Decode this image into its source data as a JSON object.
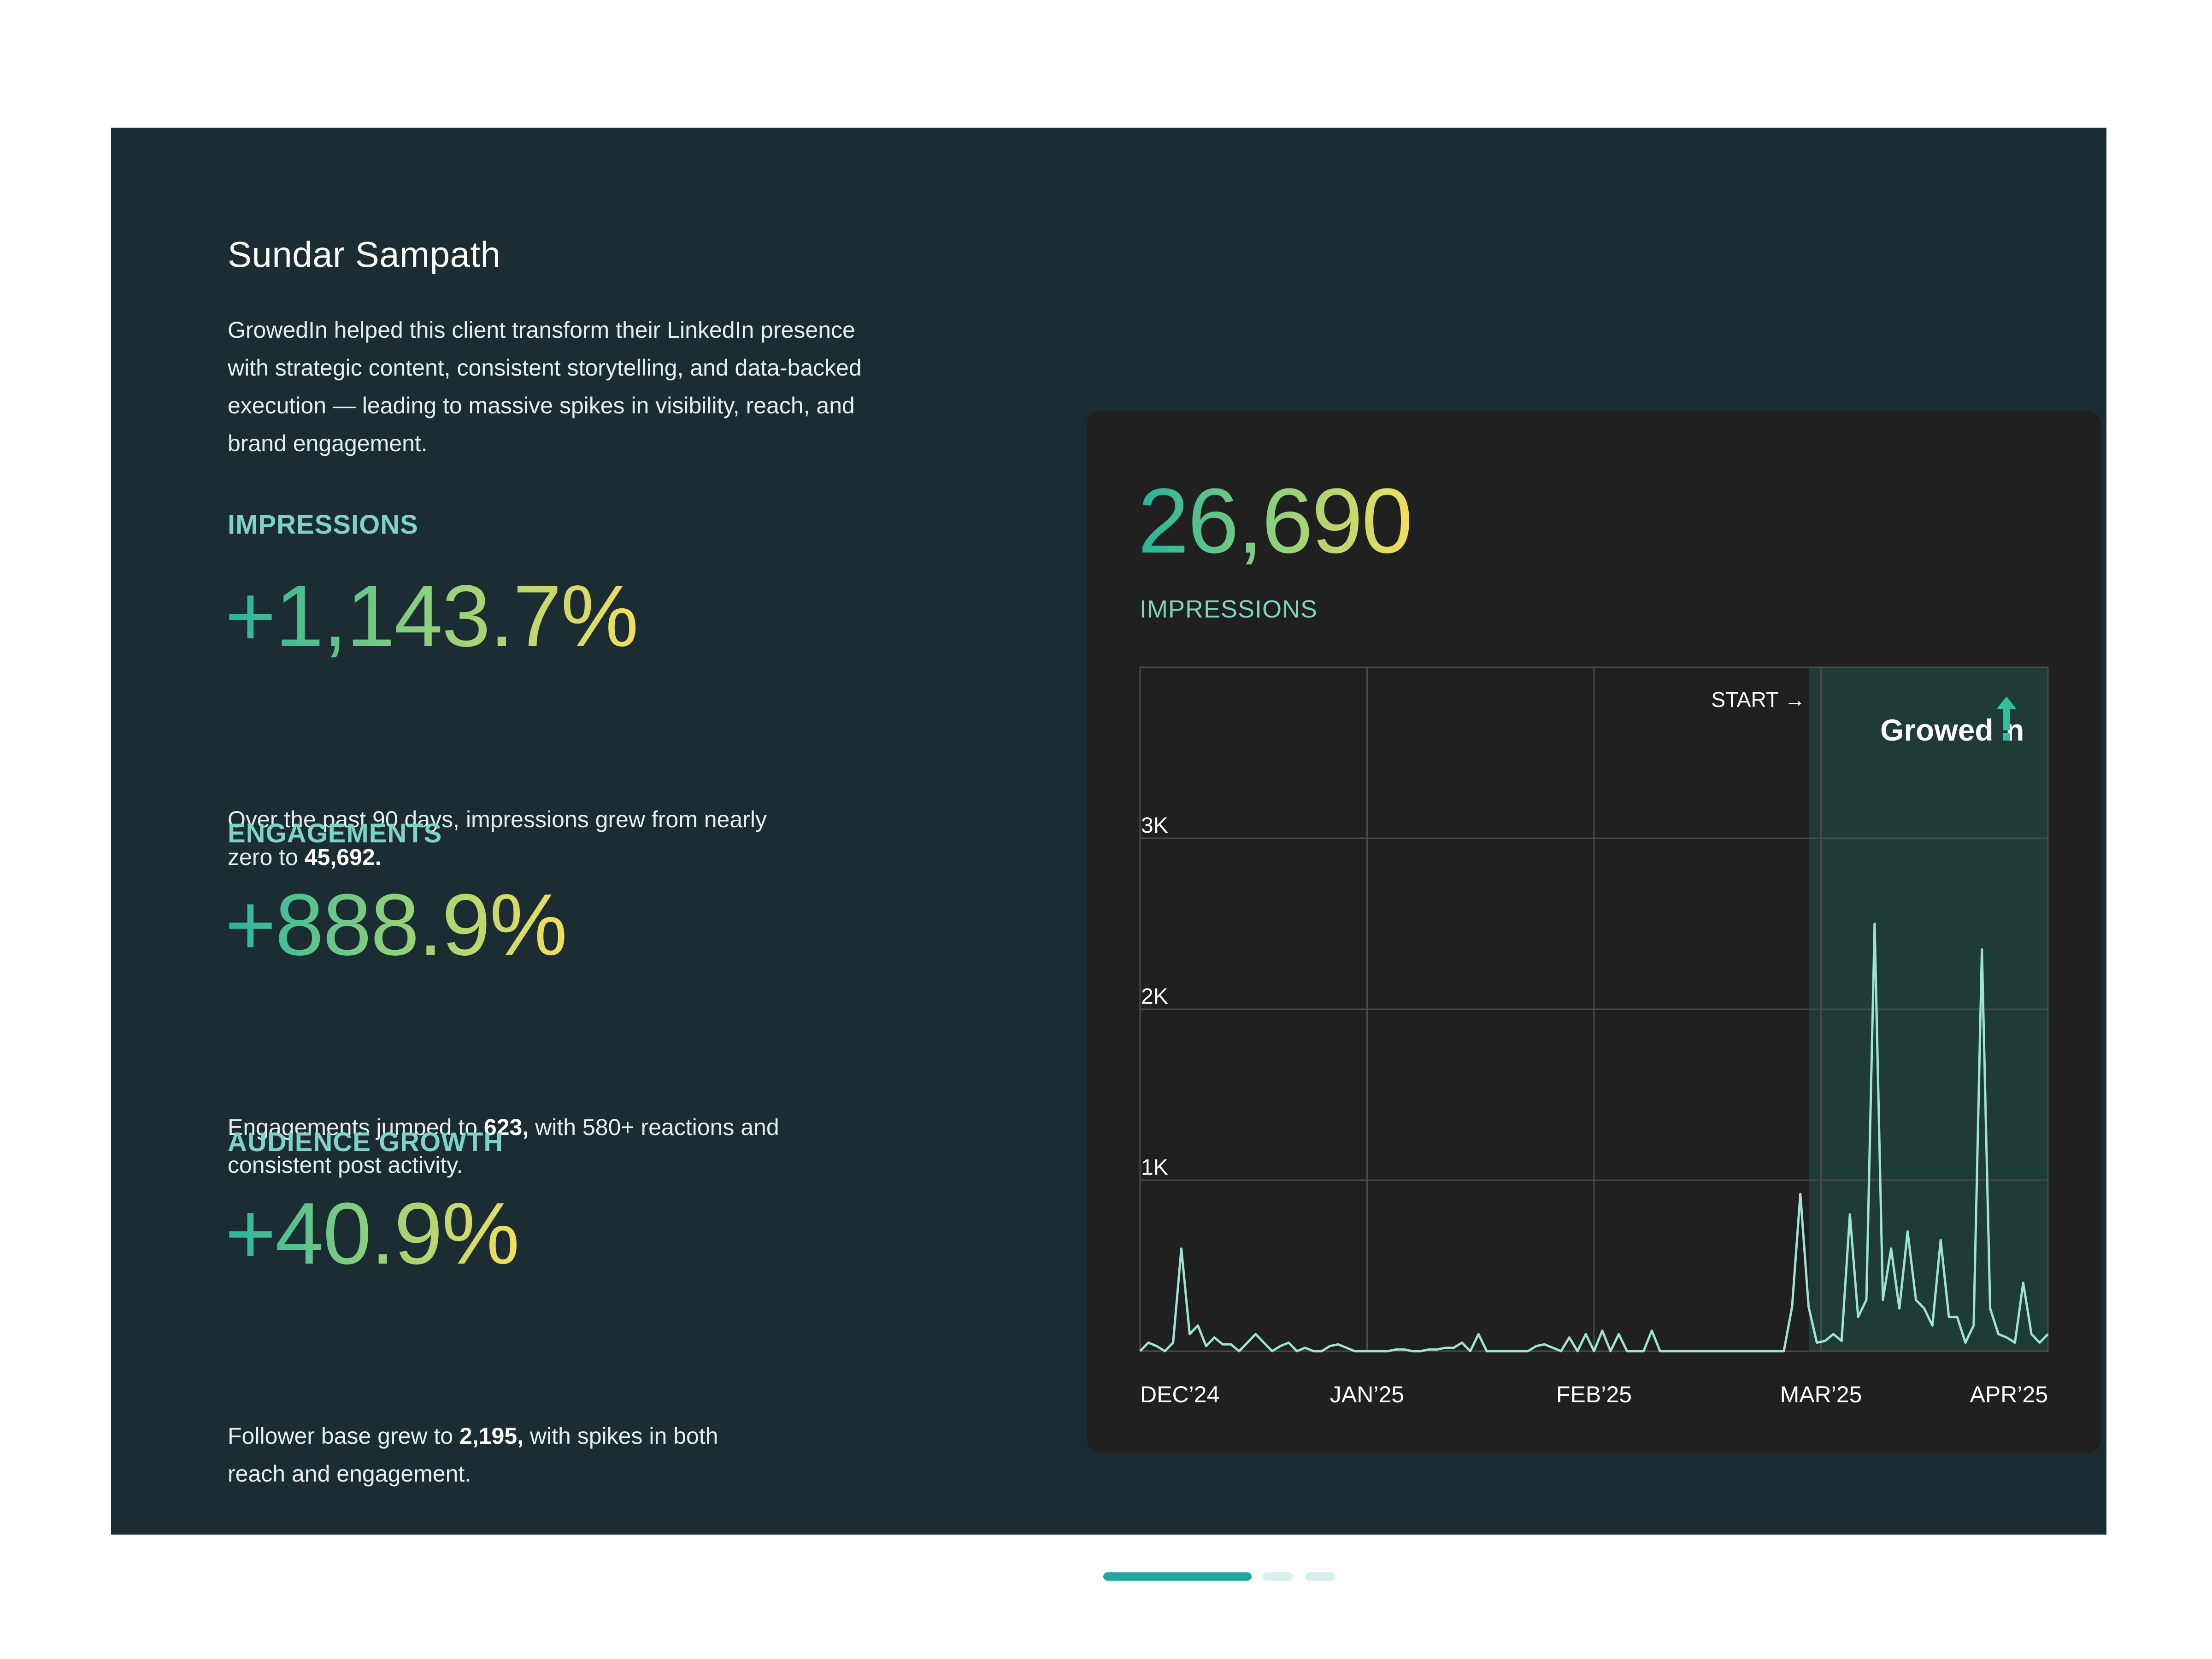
{
  "client": {
    "name": "Sundar Sampath",
    "intro": "GrowedIn helped this client transform their LinkedIn presence with strategic content, consistent storytelling, and data-backed execution — leading to massive spikes in visibility, reach, and brand engagement."
  },
  "metrics": [
    {
      "label": "IMPRESSIONS",
      "value": "+1,143.7%",
      "desc_pre": "Over the past 90 days, impressions grew from nearly zero to ",
      "desc_bold": "45,692.",
      "desc_post": ""
    },
    {
      "label": "ENGAGEMENTS",
      "value": "+888.9%",
      "desc_pre": "Engagements jumped to ",
      "desc_bold": "623,",
      "desc_post": " with 580+ reactions and consistent post activity."
    },
    {
      "label": "AUDIENCE GROWTH",
      "value": "+40.9%",
      "desc_pre": "Follower base grew to ",
      "desc_bold": "2,195,",
      "desc_post": " with spikes in both reach and engagement."
    }
  ],
  "card": {
    "total": "26,690",
    "label": "IMPRESSIONS",
    "start_marker": "START →",
    "brand_pre": "Growed",
    "brand_post": "n"
  },
  "colors": {
    "panel": "#1b2d33",
    "card": "#202020",
    "accent": "#7fd3c4",
    "line": "#9ee3d3",
    "highlight": "#1e3b36"
  },
  "carousel": {
    "total": 3,
    "active": 0
  },
  "chart_data": {
    "type": "line",
    "x_tick_labels": [
      "DEC’24",
      "JAN’25",
      "FEB’25",
      "MAR’25",
      "APR’25"
    ],
    "y_tick_labels": [
      "1K",
      "2K",
      "3K"
    ],
    "ylim": [
      0,
      4000
    ],
    "grid": true,
    "highlight_start_fraction": 0.737,
    "series": [
      {
        "values": [
          0,
          50,
          30,
          0,
          50,
          600,
          100,
          150,
          30,
          80,
          40,
          40,
          0,
          50,
          100,
          50,
          0,
          30,
          50,
          0,
          20,
          0,
          0,
          30,
          40,
          20,
          0,
          0,
          0,
          0,
          0,
          10,
          10,
          0,
          0,
          10,
          10,
          20,
          20,
          50,
          0,
          100,
          0,
          0,
          0,
          0,
          0,
          0,
          30,
          40,
          20,
          0,
          80,
          0,
          100,
          0,
          120,
          0,
          100,
          0,
          0,
          0,
          120,
          0,
          0,
          0,
          0,
          0,
          0,
          0,
          0,
          0,
          0,
          0,
          0,
          0,
          0,
          0,
          0,
          260,
          920,
          260,
          50,
          60,
          100,
          60,
          800,
          200,
          300,
          2500,
          300,
          600,
          250,
          700,
          300,
          250,
          150,
          650,
          200,
          200,
          50,
          150,
          2350,
          250,
          100,
          80,
          50,
          400,
          100,
          50,
          100
        ]
      }
    ]
  }
}
